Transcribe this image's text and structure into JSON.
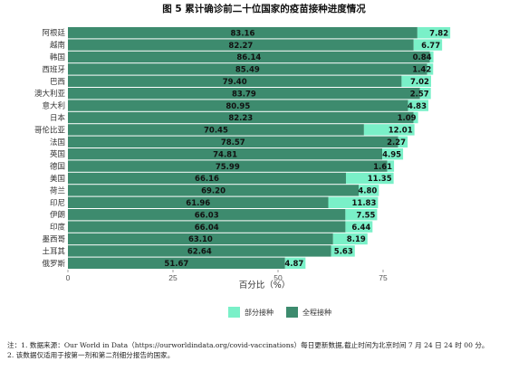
{
  "chart_data": {
    "type": "bar",
    "orientation": "horizontal",
    "stacked": true,
    "title": "图 5  累计确诊前二十位国家的疫苗接种进度情况",
    "categories": [
      "阿根廷",
      "越南",
      "韩国",
      "西班牙",
      "巴西",
      "澳大利亚",
      "意大利",
      "日本",
      "哥伦比亚",
      "法国",
      "英国",
      "德国",
      "美国",
      "荷兰",
      "印尼",
      "伊朗",
      "印度",
      "墨西哥",
      "土耳其",
      "俄罗斯"
    ],
    "series": [
      {
        "name": "全程接种",
        "color": "#3d8b6e",
        "values": [
          83.16,
          82.27,
          86.14,
          85.49,
          79.4,
          83.79,
          80.95,
          82.23,
          70.45,
          78.57,
          74.81,
          75.99,
          66.16,
          69.2,
          61.96,
          66.03,
          66.04,
          63.1,
          62.64,
          51.67
        ],
        "labels": [
          "83.16",
          "82.27",
          "86.14",
          "85.49",
          "79.40",
          "83.79",
          "80.95",
          "82.23",
          "70.45",
          "78.57",
          "74.81",
          "75.99",
          "66.16",
          "69.20",
          "61.96",
          "66.03",
          "66.04",
          "63.10",
          "62.64",
          "51.67"
        ]
      },
      {
        "name": "部分接种",
        "color": "#7af0c8",
        "values": [
          7.82,
          6.77,
          0.84,
          1.42,
          7.02,
          2.57,
          4.83,
          1.09,
          12.01,
          2.27,
          4.95,
          1.61,
          11.35,
          4.8,
          11.83,
          7.55,
          6.44,
          8.19,
          5.63,
          4.87
        ],
        "labels": [
          "7.82",
          "6.77",
          "0.84",
          "1.42",
          "7.02",
          "2.57",
          "4.83",
          "1.09",
          "12.01",
          "2.27",
          "4.95",
          "1.61",
          "11.35",
          "4.80",
          "11.83",
          "7.55",
          "6.44",
          "8.19",
          "5.63",
          "4.87"
        ]
      }
    ],
    "xlim": [
      0,
      100
    ],
    "xticks": [
      "0",
      "25",
      "50",
      "75"
    ],
    "xtick_values": [
      0,
      25,
      50,
      75
    ],
    "xlabel": "百分比（%）",
    "ylabel": "",
    "grid": false,
    "legend": {
      "placement": "bottom-center",
      "entries": [
        "部分接种",
        "全程接种"
      ]
    }
  },
  "notes": [
    "注：1. 数据来源：Our World in Data（https://ourworldindata.org/covid-vaccinations）每日更新数据,截止时间为北京时间 7 月 24 日 24 时 00 分。",
    "    2. 该数据仅适用于按第一剂和第二剂细分报告的国家。"
  ]
}
